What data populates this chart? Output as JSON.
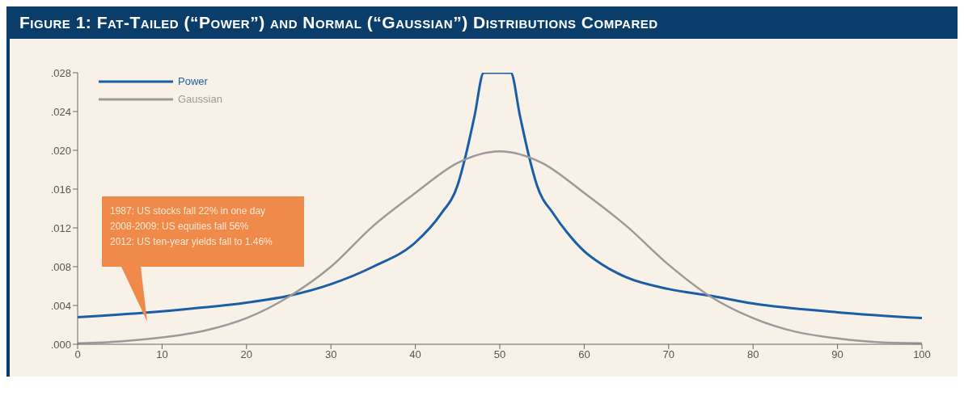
{
  "chart_data": {
    "type": "line",
    "title": "Figure 1: Fat-Tailed (“Power”) and Normal (“Gaussian”) Distributions Compared",
    "xlim": [
      0,
      100
    ],
    "xticks": [
      0,
      10,
      20,
      30,
      40,
      50,
      60,
      70,
      80,
      90,
      100
    ],
    "ylim": [
      0,
      0.028
    ],
    "yticks": [
      {
        "value": 0,
        "label": ".000"
      },
      {
        "value": 0.004,
        "label": ".004"
      },
      {
        "value": 0.008,
        "label": ".008"
      },
      {
        "value": 0.012,
        "label": ".012"
      },
      {
        "value": 0.016,
        "label": ".016"
      },
      {
        "value": 0.02,
        "label": ".020"
      },
      {
        "value": 0.024,
        "label": ".024"
      },
      {
        "value": 0.028,
        "label": ".028"
      }
    ],
    "grid": false,
    "legend": "top left",
    "marker": "none",
    "line_style": "solid",
    "series": [
      {
        "name": "Power",
        "color": "#1a5ea8",
        "x": [
          0,
          10,
          20,
          25,
          30,
          35,
          40,
          43,
          45,
          46,
          47,
          48.1,
          51.3,
          52.4,
          53.4,
          54.4,
          56.4,
          58,
          60,
          62,
          65,
          70,
          75,
          80,
          90,
          100
        ],
        "values": [
          0.0028,
          0.0034,
          0.0043,
          0.005,
          0.0062,
          0.008,
          0.0105,
          0.0134,
          0.0164,
          0.0196,
          0.0235,
          0.028,
          0.028,
          0.0235,
          0.0196,
          0.0164,
          0.0134,
          0.0115,
          0.0096,
          0.0083,
          0.0069,
          0.0057,
          0.005,
          0.0042,
          0.0033,
          0.0027
        ]
      },
      {
        "name": "Gaussian",
        "color": "#9a9a9a",
        "x": [
          0,
          5,
          10,
          15,
          20,
          25,
          30,
          35,
          40,
          45,
          50,
          55,
          60,
          65,
          70,
          75,
          80,
          85,
          90,
          95,
          100
        ],
        "values": [
          0.0001,
          0.0003,
          0.0007,
          0.0014,
          0.0027,
          0.0049,
          0.008,
          0.0122,
          0.0156,
          0.0187,
          0.0199,
          0.0187,
          0.0156,
          0.0122,
          0.0082,
          0.0049,
          0.0027,
          0.0013,
          0.0006,
          0.0002,
          0.0001
        ]
      }
    ],
    "annotations": [
      "1987: US stocks fall 22% in one day\n2008-2009: US equities fall 56%\n2012: US ten-year yields fall to 1.46%"
    ]
  }
}
